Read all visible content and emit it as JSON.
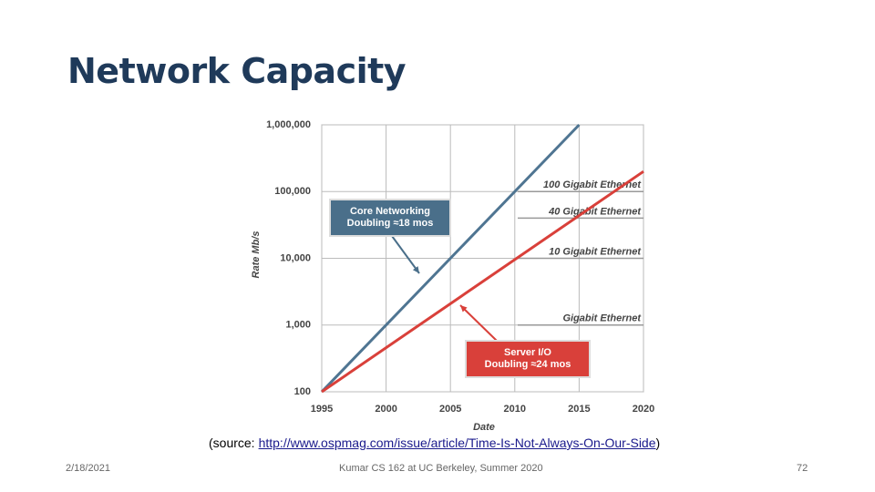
{
  "slide": {
    "title": "Network Capacity",
    "source": {
      "prefix": "(source:",
      "url": "http://www.ospmag.com/issue/article/Time-Is-Not-Always-On-Our-Side",
      "suffix": ")"
    },
    "footer": {
      "date": "2/18/2021",
      "course": "Kumar CS 162 at UC Berkeley, Summer 2020",
      "page": "72"
    }
  },
  "chart_data": {
    "type": "line",
    "y_label": "Rate Mb/s",
    "x_label": "Date",
    "log_y": true,
    "grid": true,
    "xlim": [
      1995,
      2020
    ],
    "xticks": [
      1995,
      2000,
      2005,
      2010,
      2015,
      2020
    ],
    "ylim": [
      100,
      1000000
    ],
    "yticks": [
      100,
      {
        "value": 1000,
        "label": "1,000"
      },
      {
        "value": 10000,
        "label": "10,000"
      },
      {
        "value": 100000,
        "label": "100,000"
      },
      {
        "value": 1000000,
        "label": "1,000,000"
      }
    ],
    "series": [
      {
        "name": "Core Networking",
        "color": "#4f7592",
        "x": [
          1995,
          2015
        ],
        "values": [
          100,
          1000000
        ]
      },
      {
        "name": "Server I/O",
        "color": "#d9403a",
        "x": [
          1995,
          2020
        ],
        "values": [
          100,
          200000
        ]
      }
    ],
    "reference_lines": [
      {
        "label": "100 Gigabit Ethernet",
        "value": 100000
      },
      {
        "label": "40 Gigabit Ethernet",
        "value": 40000
      },
      {
        "label": "10 Gigabit Ethernet",
        "value": 10000
      },
      {
        "label": "Gigabit Ethernet",
        "value": 1000
      }
    ],
    "annotations": [
      {
        "lines": [
          "Core Networking",
          "Doubling ≈18 mos"
        ],
        "color": "#4a6f8a"
      },
      {
        "lines": [
          "Server I/O",
          "Doubling ≈24 mos"
        ],
        "color": "#d9403a"
      }
    ]
  }
}
